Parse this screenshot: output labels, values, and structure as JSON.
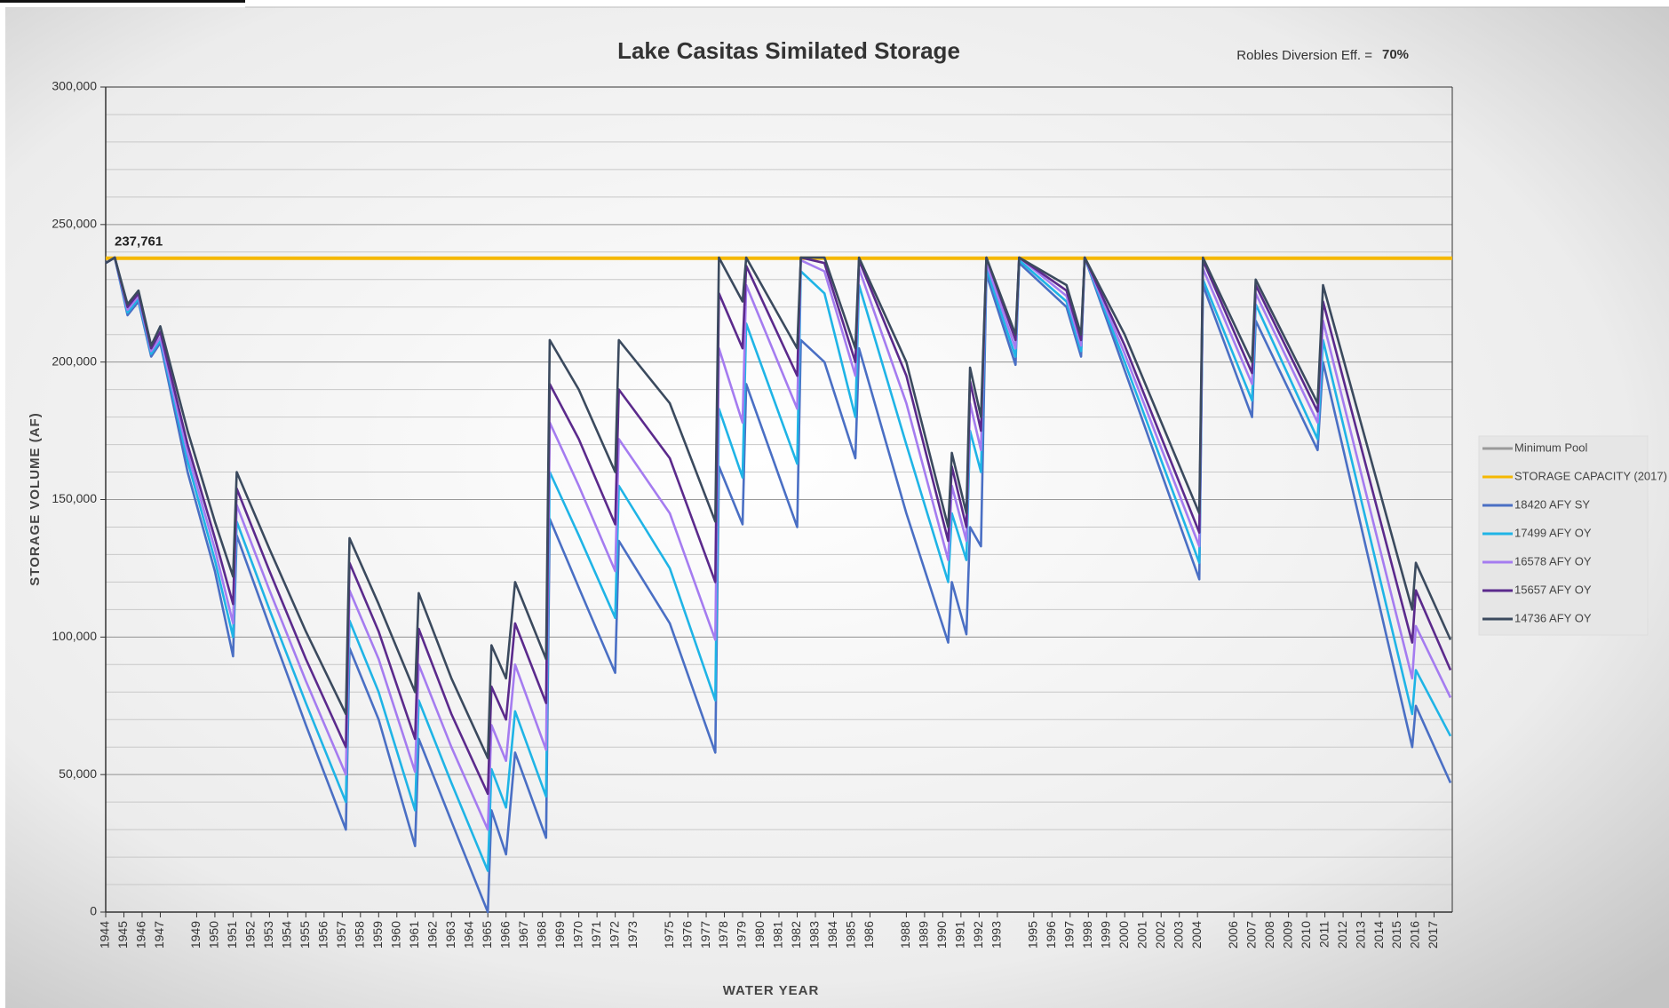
{
  "chart_data": {
    "type": "line",
    "title": "Lake Casitas Similated Storage",
    "annotation": {
      "label": "Robles Diversion Eff. =",
      "value": "70%"
    },
    "x_label": "WATER YEAR",
    "y_label": "STORAGE VOLUME (AF)",
    "xlim": [
      1944,
      2018
    ],
    "xticks": [
      1944,
      1945,
      1946,
      1947,
      1949,
      1950,
      1951,
      1952,
      1953,
      1954,
      1955,
      1956,
      1957,
      1958,
      1959,
      1960,
      1961,
      1962,
      1963,
      1964,
      1965,
      1966,
      1967,
      1968,
      1969,
      1970,
      1971,
      1972,
      1973,
      1975,
      1976,
      1977,
      1978,
      1979,
      1980,
      1981,
      1982,
      1983,
      1984,
      1985,
      1986,
      1988,
      1989,
      1990,
      1991,
      1992,
      1993,
      1995,
      1996,
      1997,
      1998,
      1999,
      2000,
      2001,
      2002,
      2003,
      2004,
      2006,
      2007,
      2008,
      2009,
      2010,
      2011,
      2012,
      2013,
      2014,
      2015,
      2016,
      2017
    ],
    "ylim": [
      0,
      300000
    ],
    "yticks": [
      {
        "value": 0,
        "label": "0"
      },
      {
        "value": 50000,
        "label": "50,000"
      },
      {
        "value": 100000,
        "label": "100,000"
      },
      {
        "value": 150000,
        "label": "150,000"
      },
      {
        "value": 200000,
        "label": "200,000"
      },
      {
        "value": 250000,
        "label": "250,000"
      },
      {
        "value": 300000,
        "label": "300,000"
      }
    ],
    "minor_grid_step": 10000,
    "grid": true,
    "legend": "right",
    "x": [
      1944.0,
      1944.5,
      1945.2,
      1945.8,
      1946.5,
      1947.0,
      1948.5,
      1950.0,
      1951.0,
      1951.2,
      1953.0,
      1955.0,
      1957.2,
      1957.4,
      1959.0,
      1961.0,
      1961.2,
      1963.0,
      1965.0,
      1965.2,
      1966.0,
      1966.5,
      1968.2,
      1968.4,
      1970.0,
      1972.0,
      1972.2,
      1975.0,
      1977.5,
      1977.7,
      1979.0,
      1979.2,
      1982.0,
      1982.2,
      1983.5,
      1985.2,
      1985.4,
      1988.0,
      1990.3,
      1990.5,
      1991.3,
      1991.5,
      1992.1,
      1992.4,
      1994.0,
      1994.2,
      1996.8,
      1997.6,
      1997.8,
      2000.0,
      2004.1,
      2004.3,
      2007.0,
      2007.2,
      2010.6,
      2010.9,
      2015.8,
      2016.0,
      2017.9
    ],
    "series": [
      {
        "name": "Minimum Pool",
        "color": "#9a9a9a"
      },
      {
        "name": "STORAGE CAPACITY (2017)",
        "color": "#f5b800",
        "value": 237761,
        "value_label": "237,761"
      },
      {
        "name": "18420 AFY SY",
        "color": "#4a6fc4",
        "values": [
          236000,
          238000,
          217000,
          222000,
          202000,
          207000,
          160000,
          124000,
          93000,
          137000,
          104000,
          68000,
          30000,
          96000,
          70000,
          24000,
          63000,
          33000,
          0,
          37000,
          21000,
          58000,
          27000,
          143000,
          118000,
          87000,
          135000,
          105000,
          58000,
          162000,
          141000,
          192000,
          140000,
          208000,
          200000,
          165000,
          205000,
          145000,
          98000,
          120000,
          101000,
          140000,
          133000,
          232000,
          199000,
          236000,
          220000,
          202000,
          238000,
          197000,
          121000,
          228000,
          180000,
          215000,
          168000,
          200000,
          60000,
          75000,
          47000
        ]
      },
      {
        "name": "17499 AFY OY",
        "color": "#1fb4e6",
        "values": [
          236000,
          238000,
          218000,
          223000,
          203000,
          208000,
          164000,
          128000,
          100000,
          142000,
          110000,
          76000,
          40000,
          106000,
          80000,
          37000,
          77000,
          47000,
          15000,
          52000,
          38000,
          73000,
          42000,
          160000,
          137000,
          107000,
          155000,
          125000,
          77000,
          183000,
          158000,
          214000,
          163000,
          233000,
          225000,
          180000,
          228000,
          170000,
          120000,
          145000,
          128000,
          175000,
          160000,
          234000,
          202000,
          237000,
          222000,
          204000,
          238000,
          200000,
          127000,
          230000,
          186000,
          221000,
          172000,
          208000,
          72000,
          88000,
          64000
        ]
      },
      {
        "name": "16578 AFY OY",
        "color": "#a57cf0",
        "values": [
          236000,
          238000,
          219000,
          224000,
          204000,
          209000,
          167000,
          132000,
          105000,
          148000,
          117000,
          84000,
          50000,
          117000,
          92000,
          51000,
          90000,
          60000,
          30000,
          68000,
          55000,
          90000,
          59000,
          178000,
          155000,
          124000,
          172000,
          145000,
          99000,
          205000,
          178000,
          228000,
          183000,
          237000,
          233000,
          195000,
          234000,
          185000,
          128000,
          155000,
          135000,
          185000,
          168000,
          236000,
          205000,
          238000,
          224000,
          206000,
          238000,
          203000,
          133000,
          234000,
          192000,
          225000,
          178000,
          215000,
          85000,
          104000,
          78000
        ]
      },
      {
        "name": "15657 AFY OY",
        "color": "#5b2a8c",
        "values": [
          236000,
          238000,
          220000,
          225000,
          205000,
          211000,
          170000,
          136000,
          112000,
          154000,
          124000,
          92000,
          60000,
          127000,
          102000,
          63000,
          103000,
          72000,
          43000,
          82000,
          70000,
          105000,
          76000,
          192000,
          172000,
          141000,
          190000,
          165000,
          120000,
          225000,
          205000,
          235000,
          195000,
          238000,
          236000,
          200000,
          237000,
          195000,
          135000,
          162000,
          140000,
          193000,
          175000,
          238000,
          208000,
          238000,
          226000,
          208000,
          238000,
          206000,
          138000,
          237000,
          196000,
          228000,
          182000,
          222000,
          98000,
          117000,
          88000
        ]
      },
      {
        "name": "14736 AFY OY",
        "color": "#3b4a5e",
        "values": [
          236000,
          238000,
          221000,
          226000,
          206000,
          213000,
          175000,
          142000,
          122000,
          160000,
          132000,
          102000,
          72000,
          136000,
          112000,
          80000,
          116000,
          85000,
          56000,
          97000,
          85000,
          120000,
          92000,
          208000,
          190000,
          160000,
          208000,
          185000,
          142000,
          238000,
          222000,
          238000,
          205000,
          238000,
          238000,
          205000,
          238000,
          200000,
          140000,
          167000,
          145000,
          198000,
          180000,
          238000,
          210000,
          238000,
          228000,
          210000,
          238000,
          210000,
          145000,
          238000,
          200000,
          230000,
          185000,
          228000,
          110000,
          127000,
          99000
        ]
      }
    ]
  }
}
